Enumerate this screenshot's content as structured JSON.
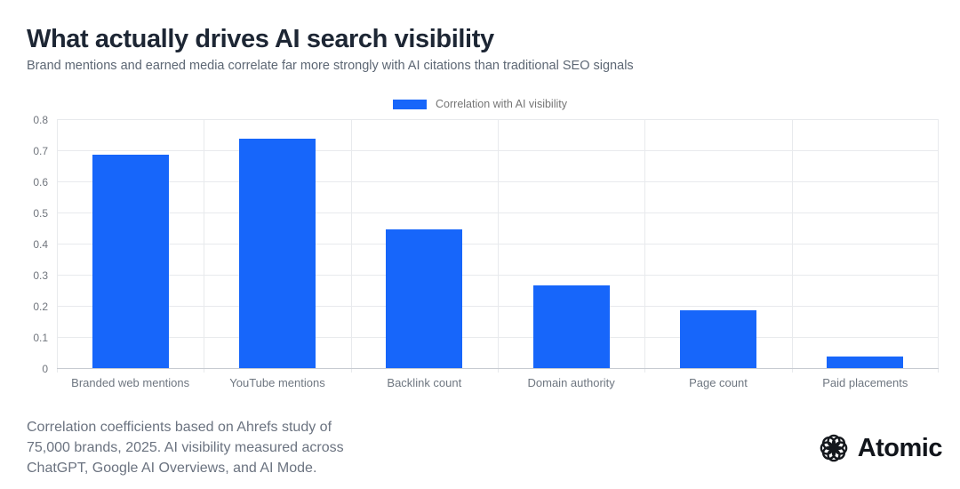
{
  "header": {
    "title": "What actually drives AI search visibility",
    "subtitle": "Brand mentions and earned media correlate far more strongly with AI citations than traditional SEO signals"
  },
  "legend": {
    "label": "Correlation with AI visibility",
    "swatch_color": "#1766fa"
  },
  "chart_data": {
    "type": "bar",
    "title": "What actually drives AI search visibility",
    "categories": [
      "Branded web mentions",
      "YouTube mentions",
      "Backlink count",
      "Domain authority",
      "Page count",
      "Paid placements"
    ],
    "series": [
      {
        "name": "Correlation with AI visibility",
        "values": [
          0.69,
          0.74,
          0.45,
          0.27,
          0.19,
          0.04
        ]
      }
    ],
    "values": [
      0.69,
      0.74,
      0.45,
      0.27,
      0.19,
      0.04
    ],
    "xlabel": "",
    "ylabel": "",
    "ylim": [
      0,
      0.8
    ],
    "ytick_step": 0.1,
    "yticks": [
      "0",
      "0.1",
      "0.2",
      "0.3",
      "0.4",
      "0.5",
      "0.6",
      "0.7",
      "0.8"
    ],
    "bar_color": "#1766fa",
    "grid": true,
    "legend_position": "top-center"
  },
  "footer": {
    "source_lines": [
      "Correlation coefficients based on Ahrefs study of",
      "75,000 brands, 2025. AI visibility measured across",
      "ChatGPT, Google AI Overviews, and AI Mode."
    ],
    "brand": "Atomic"
  }
}
